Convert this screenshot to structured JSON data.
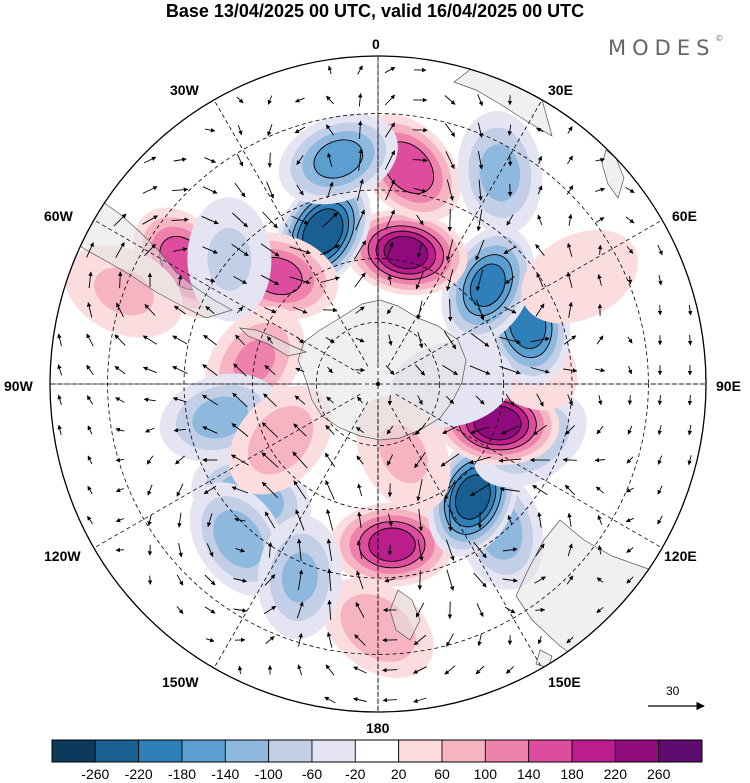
{
  "title": "Base 13/04/2025 00 UTC, valid 16/04/2025 00 UTC",
  "brand": "MODES",
  "brand_mark": "©",
  "longitude_labels": {
    "lon_0": "0",
    "lon_30e": "30E",
    "lon_60e": "60E",
    "lon_90e": "90E",
    "lon_120e": "120E",
    "lon_150e": "150E",
    "lon_180": "180",
    "lon_150w": "150W",
    "lon_120w": "120W",
    "lon_90w": "90W",
    "lon_60w": "60W",
    "lon_30w": "30W"
  },
  "vector_scale_label": "30",
  "colorbar": {
    "ticks": [
      "-260",
      "-220",
      "-180",
      "-140",
      "-100",
      "-60",
      "-20",
      "20",
      "60",
      "100",
      "140",
      "180",
      "220",
      "260"
    ],
    "colors": [
      "#0d3a5c",
      "#1a5f91",
      "#2f7fba",
      "#5b9fd0",
      "#8fb8de",
      "#c2cfe6",
      "#e4e4f2",
      "#ffffff",
      "#fbdde0",
      "#f6b4c2",
      "#ee82ad",
      "#de4d9d",
      "#bb1e8c",
      "#8f0a7d",
      "#5e0a6e"
    ]
  },
  "field": {
    "projection": "south-polar-stereographic",
    "anomalies": [
      {
        "lon": 5,
        "lat": -52,
        "value": 190
      },
      {
        "lon": 0,
        "lat": -35,
        "value": 90
      },
      {
        "lon": 40,
        "lat": -46,
        "value": -120
      },
      {
        "lon": 40,
        "lat": -55,
        "value": -235
      },
      {
        "lon": 70,
        "lat": -52,
        "value": -100
      },
      {
        "lon": 72,
        "lat": -60,
        "value": 240
      },
      {
        "lon": 100,
        "lat": -55,
        "value": 60
      },
      {
        "lon": 112,
        "lat": -52,
        "value": -200
      },
      {
        "lon": 132,
        "lat": -55,
        "value": -185
      },
      {
        "lon": 118,
        "lat": -38,
        "value": 50
      },
      {
        "lon": 168,
        "lat": -58,
        "value": 230
      },
      {
        "lon": 172,
        "lat": -40,
        "value": 170
      },
      {
        "lon": 150,
        "lat": -35,
        "value": -110
      },
      {
        "lon": 200,
        "lat": -52,
        "value": -250
      },
      {
        "lon": 190,
        "lat": -38,
        "value": -150
      },
      {
        "lon": 223,
        "lat": -55,
        "value": 150
      },
      {
        "lon": 238,
        "lat": -38,
        "value": 170
      },
      {
        "lon": 230,
        "lat": -45,
        "value": -60
      },
      {
        "lon": 260,
        "lat": -60,
        "value": 100
      },
      {
        "lon": 282,
        "lat": -52,
        "value": -110
      },
      {
        "lon": 312,
        "lat": -50,
        "value": -130
      },
      {
        "lon": 318,
        "lat": -42,
        "value": -120
      },
      {
        "lon": 338,
        "lat": -42,
        "value": -100
      },
      {
        "lon": 300,
        "lat": -63,
        "value": 80
      },
      {
        "lon": 90,
        "lat": -72,
        "value": -40
      },
      {
        "lon": 250,
        "lat": -30,
        "value": 60
      },
      {
        "lon": 20,
        "lat": -72,
        "value": 60
      }
    ]
  }
}
